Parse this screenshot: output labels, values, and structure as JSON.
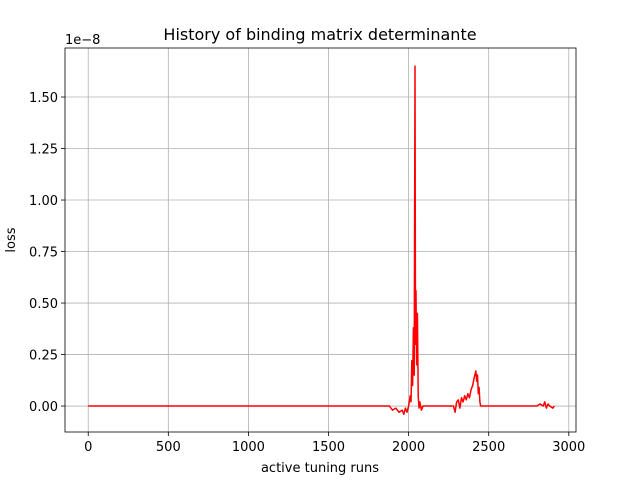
{
  "chart_data": {
    "type": "line",
    "title": "History of binding matrix determinante",
    "x_label": "active tuning runs",
    "y_label": "loss",
    "y_offset_label": "1e−8",
    "x": [
      0,
      1880,
      1900,
      1920,
      1940,
      1960,
      1970,
      1980,
      1990,
      2000,
      2010,
      2015,
      2020,
      2025,
      2030,
      2035,
      2040,
      2043,
      2046,
      2050,
      2055,
      2060,
      2065,
      2070,
      2080,
      2090,
      2280,
      2290,
      2300,
      2310,
      2320,
      2330,
      2340,
      2350,
      2360,
      2370,
      2380,
      2390,
      2400,
      2410,
      2420,
      2425,
      2430,
      2435,
      2440,
      2445,
      2450,
      2800,
      2820,
      2840,
      2850,
      2860,
      2870,
      2880,
      2900,
      2910
    ],
    "series": [
      {
        "name": "loss",
        "color": "#ff0000",
        "values": [
          0,
          0,
          -0.02,
          -0.01,
          -0.03,
          -0.02,
          -0.04,
          -0.01,
          -0.03,
          0.0,
          0.05,
          0.02,
          0.22,
          0.1,
          0.38,
          0.15,
          1.65,
          0.3,
          0.56,
          0.2,
          0.45,
          0.05,
          -0.01,
          0.02,
          -0.02,
          0,
          0,
          -0.03,
          0.02,
          0.03,
          -0.01,
          0.04,
          0.02,
          0.05,
          0.03,
          0.06,
          0.04,
          0.08,
          0.1,
          0.14,
          0.17,
          0.12,
          0.15,
          0.06,
          0.09,
          0.02,
          0,
          0,
          0.01,
          0.0,
          0.02,
          -0.01,
          0.01,
          0,
          -0.01,
          0
        ]
      }
    ],
    "xlim": [
      -145,
      3045
    ],
    "ylim": [
      -0.126,
      1.738
    ],
    "xticks": [
      0,
      500,
      1000,
      1500,
      2000,
      2500,
      3000
    ],
    "yticks": [
      {
        "value": 0,
        "label": "0.00"
      },
      0.25,
      {
        "value": 0.5,
        "label": "0.50"
      },
      0.75,
      {
        "value": 1,
        "label": "1.00"
      },
      1.25,
      {
        "value": 1.5,
        "label": "1.50"
      }
    ],
    "grid": true
  }
}
